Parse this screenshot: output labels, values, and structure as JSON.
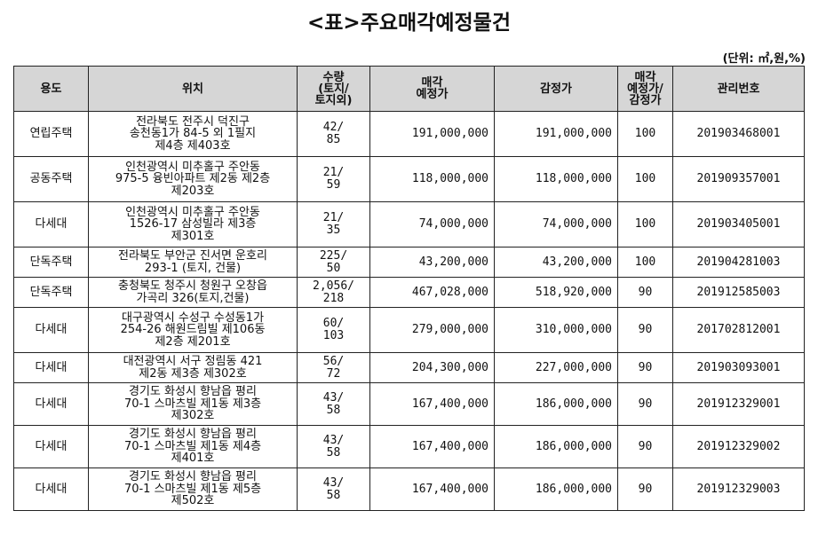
{
  "title": "<표>주요매각예정물건",
  "unit": "(단위: ㎡,원,%)",
  "headers": {
    "use": "용도",
    "location": "위치",
    "qty": [
      "수량",
      "(토지/",
      "토지외)"
    ],
    "sale_price": [
      "매각",
      "예정가"
    ],
    "appraisal": "감정가",
    "ratio": [
      "매각",
      "예정가/",
      "감정가"
    ],
    "mgmt_no": "관리번호"
  },
  "rows": [
    {
      "use": "연립주택",
      "loc": [
        "전라북도 전주시 덕진구",
        "송천동1가 84-5 외 1필지",
        "제4층 제403호"
      ],
      "qty": [
        "42/",
        "85"
      ],
      "sale": "191,000,000",
      "appraisal": "191,000,000",
      "ratio": "100",
      "no": "201903468001"
    },
    {
      "use": "공동주택",
      "loc": [
        "인천광역시 미추홀구 주안동",
        "975-5 융빈아파트 제2동 제2층",
        "제203호"
      ],
      "qty": [
        "21/",
        "59"
      ],
      "sale": "118,000,000",
      "appraisal": "118,000,000",
      "ratio": "100",
      "no": "201909357001"
    },
    {
      "use": "다세대",
      "loc": [
        "인천광역시 미추홀구 주안동",
        "1526-17 삼성빌라 제3층",
        "제301호"
      ],
      "qty": [
        "21/",
        "35"
      ],
      "sale": "74,000,000",
      "appraisal": "74,000,000",
      "ratio": "100",
      "no": "201903405001"
    },
    {
      "use": "단독주택",
      "loc": [
        "전라북도 부안군 진서면 운호리",
        "293-1 (토지, 건물)"
      ],
      "qty": [
        "225/",
        "50"
      ],
      "sale": "43,200,000",
      "appraisal": "43,200,000",
      "ratio": "100",
      "no": "201904281003"
    },
    {
      "use": "단독주택",
      "loc": [
        "충청북도 청주시 청원구 오창읍",
        "가곡리 326(토지,건물)"
      ],
      "qty": [
        "2,056/",
        "218"
      ],
      "sale": "467,028,000",
      "appraisal": "518,920,000",
      "ratio": "90",
      "no": "201912585003"
    },
    {
      "use": "다세대",
      "loc": [
        "대구광역시 수성구 수성동1가",
        "254-26 해원드림빌 제106동",
        "제2층 제201호"
      ],
      "qty": [
        "60/",
        "103"
      ],
      "sale": "279,000,000",
      "appraisal": "310,000,000",
      "ratio": "90",
      "no": "201702812001"
    },
    {
      "use": "다세대",
      "loc": [
        "대전광역시 서구 정림동 421",
        "제2동 제3층 제302호"
      ],
      "qty": [
        "56/",
        "72"
      ],
      "sale": "204,300,000",
      "appraisal": "227,000,000",
      "ratio": "90",
      "no": "201903093001"
    },
    {
      "use": "다세대",
      "loc": [
        "경기도 화성시 향남읍 평리",
        "70-1 스마츠빌 제1동 제3층",
        "제302호"
      ],
      "qty": [
        "43/",
        "58"
      ],
      "sale": "167,400,000",
      "appraisal": "186,000,000",
      "ratio": "90",
      "no": "201912329001"
    },
    {
      "use": "다세대",
      "loc": [
        "경기도 화성시 향남읍 평리",
        "70-1 스마츠빌 제1동 제4층",
        "제401호"
      ],
      "qty": [
        "43/",
        "58"
      ],
      "sale": "167,400,000",
      "appraisal": "186,000,000",
      "ratio": "90",
      "no": "201912329002"
    },
    {
      "use": "다세대",
      "loc": [
        "경기도 화성시 향남읍 평리",
        "70-1 스마츠빌 제1동 제5층",
        "제502호"
      ],
      "qty": [
        "43/",
        "58"
      ],
      "sale": "167,400,000",
      "appraisal": "186,000,000",
      "ratio": "90",
      "no": "201912329003"
    }
  ]
}
